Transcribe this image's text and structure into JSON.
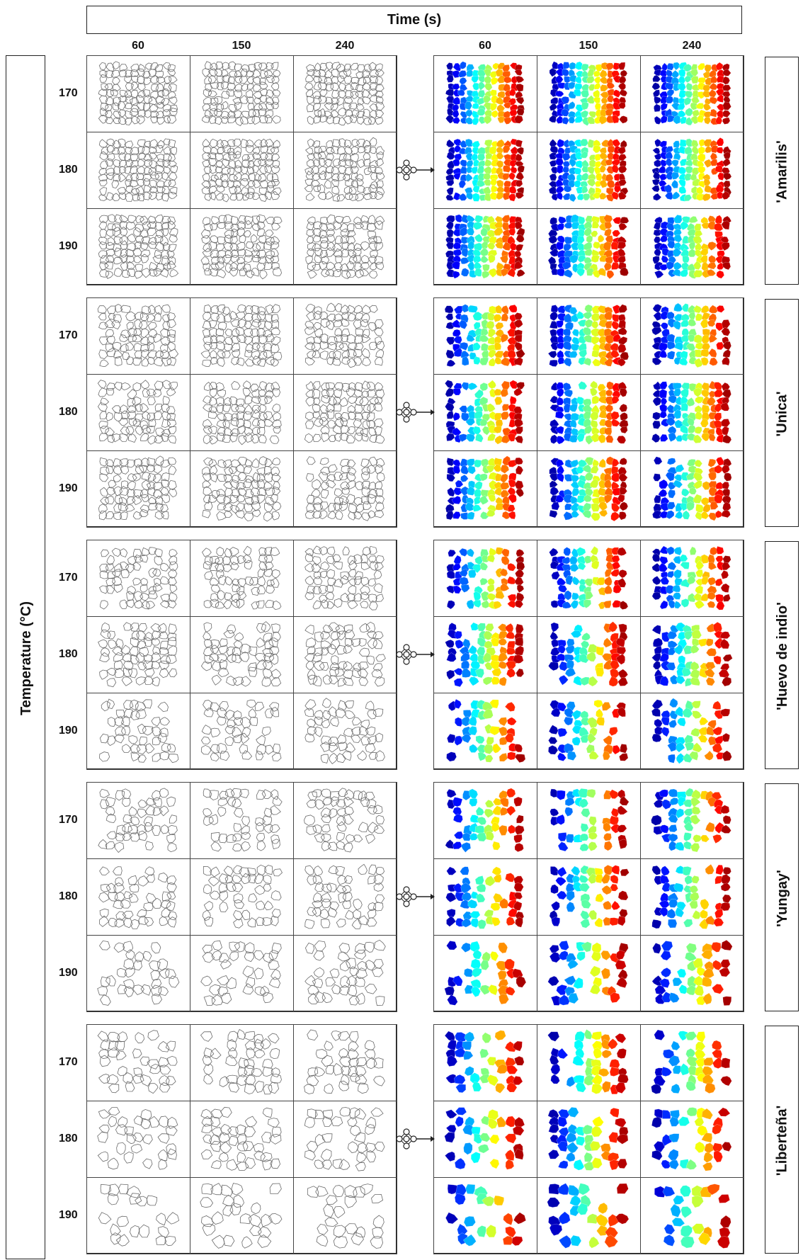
{
  "axes": {
    "time_title": "Time (s)",
    "temperature_title": "Temperature (°C)",
    "time_labels": [
      "60",
      "150",
      "240"
    ],
    "temp_labels": [
      "170",
      "180",
      "190"
    ]
  },
  "varieties": [
    {
      "name": "'Amarilis'"
    },
    {
      "name": "'Unica'"
    },
    {
      "name": "'Huevo de indio'"
    },
    {
      "name": "'Yungay'"
    },
    {
      "name": "'Liberteña'"
    }
  ],
  "icons": {
    "network": "neural-network-icon"
  },
  "colors": {
    "border": "#222222",
    "cell_line": "#6b6b6b",
    "colormap": [
      "#00008b",
      "#0000ff",
      "#0080ff",
      "#00ffff",
      "#80ff80",
      "#ffff00",
      "#ff8000",
      "#ff0000",
      "#800000"
    ]
  }
}
